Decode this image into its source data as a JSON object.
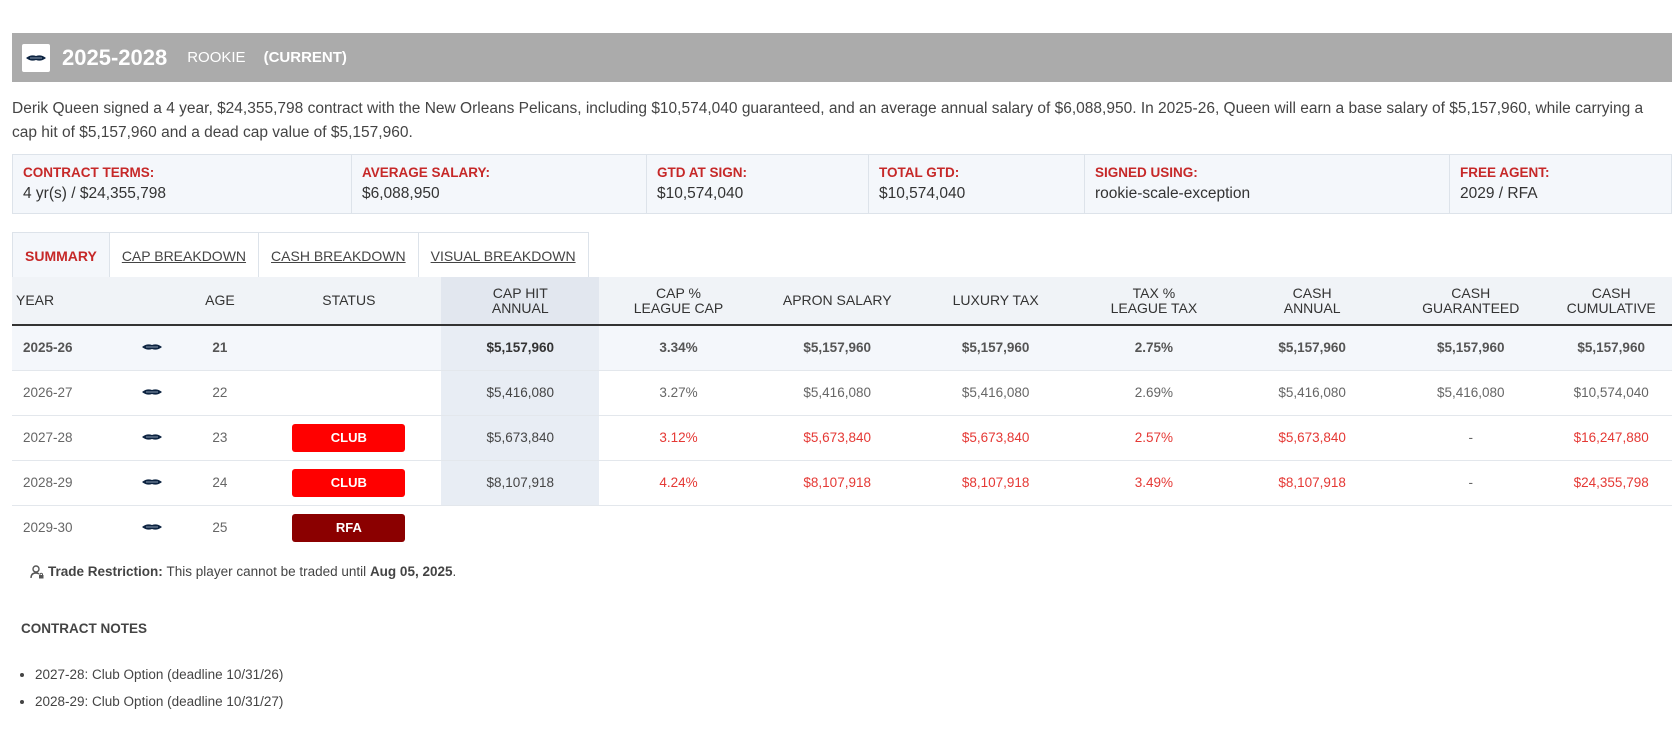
{
  "header": {
    "years": "2025-2028",
    "type": "ROOKIE",
    "current": "(CURRENT)"
  },
  "summary": "Derik Queen signed a 4 year, $24,355,798 contract with the New Orleans Pelicans, including $10,574,040 guaranteed, and an average annual salary of $6,088,950. In 2025-26, Queen will earn a base salary of $5,157,960, while carrying a cap hit of $5,157,960 and a dead cap value of $5,157,960.",
  "terms": [
    {
      "label": "CONTRACT TERMS:",
      "value": "4 yr(s) / $24,355,798"
    },
    {
      "label": "AVERAGE SALARY:",
      "value": "$6,088,950"
    },
    {
      "label": "GTD AT SIGN:",
      "value": "$10,574,040"
    },
    {
      "label": "TOTAL GTD:",
      "value": "$10,574,040"
    },
    {
      "label": "SIGNED USING:",
      "value": "rookie-scale-exception"
    },
    {
      "label": "FREE AGENT:",
      "value": "2029 / RFA"
    }
  ],
  "tabs": [
    "SUMMARY",
    "CAP BREAKDOWN",
    "CASH BREAKDOWN",
    "VISUAL BREAKDOWN"
  ],
  "table": {
    "headers": {
      "year": "YEAR",
      "age": "AGE",
      "status": "STATUS",
      "caphit_1": "CAP HIT",
      "caphit_2": "ANNUAL",
      "cap_pct_1": "CAP %",
      "cap_pct_2": "LEAGUE CAP",
      "apron": "APRON SALARY",
      "lux": "LUXURY TAX",
      "tax_pct_1": "TAX %",
      "tax_pct_2": "LEAGUE TAX",
      "cash_annual_1": "CASH",
      "cash_annual_2": "ANNUAL",
      "cash_gtd_1": "CASH",
      "cash_gtd_2": "GUARANTEED",
      "cash_cum_1": "CASH",
      "cash_cum_2": "CUMULATIVE"
    },
    "rows": [
      {
        "year": "2025-26",
        "age": "21",
        "status": "",
        "caphit": "$5,157,960",
        "cap_pct": "3.34%",
        "apron": "$5,157,960",
        "lux": "$5,157,960",
        "tax_pct": "2.75%",
        "cash_annual": "$5,157,960",
        "cash_gtd": "$5,157,960",
        "cash_cum": "$5,157,960"
      },
      {
        "year": "2026-27",
        "age": "22",
        "status": "",
        "caphit": "$5,416,080",
        "cap_pct": "3.27%",
        "apron": "$5,416,080",
        "lux": "$5,416,080",
        "tax_pct": "2.69%",
        "cash_annual": "$5,416,080",
        "cash_gtd": "$5,416,080",
        "cash_cum": "$10,574,040"
      },
      {
        "year": "2027-28",
        "age": "23",
        "status": "CLUB",
        "caphit": "$5,673,840",
        "cap_pct": "3.12%",
        "apron": "$5,673,840",
        "lux": "$5,673,840",
        "tax_pct": "2.57%",
        "cash_annual": "$5,673,840",
        "cash_gtd": "-",
        "cash_cum": "$16,247,880"
      },
      {
        "year": "2028-29",
        "age": "24",
        "status": "CLUB",
        "caphit": "$8,107,918",
        "cap_pct": "4.24%",
        "apron": "$8,107,918",
        "lux": "$8,107,918",
        "tax_pct": "3.49%",
        "cash_annual": "$8,107,918",
        "cash_gtd": "-",
        "cash_cum": "$24,355,798"
      },
      {
        "year": "2029-30",
        "age": "25",
        "status": "RFA"
      }
    ]
  },
  "trade": {
    "label": "Trade Restriction:",
    "text": "This player cannot be traded until",
    "date": "Aug 05, 2025",
    "period": "."
  },
  "notes": {
    "title": "CONTRACT NOTES",
    "items": [
      "2027-28: Club Option (deadline 10/31/26)",
      "2028-29: Club Option (deadline 10/31/27)"
    ]
  },
  "colors": {
    "accent_red": "#c62828",
    "club_badge": "#ff0000",
    "rfa_badge": "#8b0000",
    "header_bar": "#ababab"
  }
}
